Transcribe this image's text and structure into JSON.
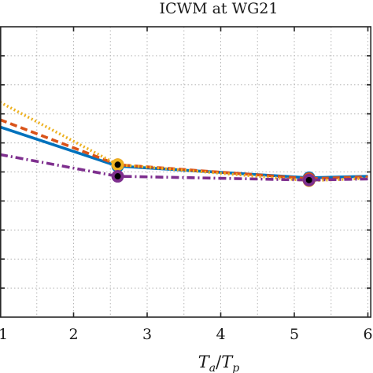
{
  "chart_data": {
    "type": "line",
    "title": "ICWM at WG21",
    "xlabel": "T_a/T_p",
    "xlabel_parts": {
      "a": "T",
      "a_sub": "a",
      "sep": "/",
      "b": "T",
      "b_sub": "p"
    },
    "xlim": [
      1,
      6
    ],
    "xticks": [
      1,
      2,
      3,
      4,
      5,
      6
    ],
    "xtick_labels": [
      "1",
      "2",
      "3",
      "4",
      "5",
      "6"
    ],
    "ylim": [
      0,
      1
    ],
    "grid": true,
    "series": [
      {
        "color": "#0072BD",
        "style": "solid",
        "x": [
          1,
          2.6,
          5.2,
          6
        ],
        "y": [
          0.655,
          0.52,
          0.48,
          0.485
        ],
        "markers": [
          false,
          true,
          true,
          false
        ]
      },
      {
        "color": "#D95319",
        "style": "dashed",
        "x": [
          1,
          2.6,
          5.2,
          6
        ],
        "y": [
          0.68,
          0.525,
          0.477,
          0.483
        ],
        "markers": [
          false,
          true,
          true,
          false
        ]
      },
      {
        "color": "#EDB120",
        "style": "dotted",
        "x": [
          1,
          2.6,
          5.2,
          6
        ],
        "y": [
          0.74,
          0.525,
          0.47,
          0.478
        ],
        "markers": [
          false,
          true,
          true,
          false
        ]
      },
      {
        "color": "#7E2F8E",
        "style": "dashdot",
        "x": [
          1,
          2.6,
          5.2,
          6
        ],
        "y": [
          0.56,
          0.485,
          0.472,
          0.476
        ],
        "markers": [
          false,
          true,
          true,
          false
        ]
      }
    ]
  }
}
